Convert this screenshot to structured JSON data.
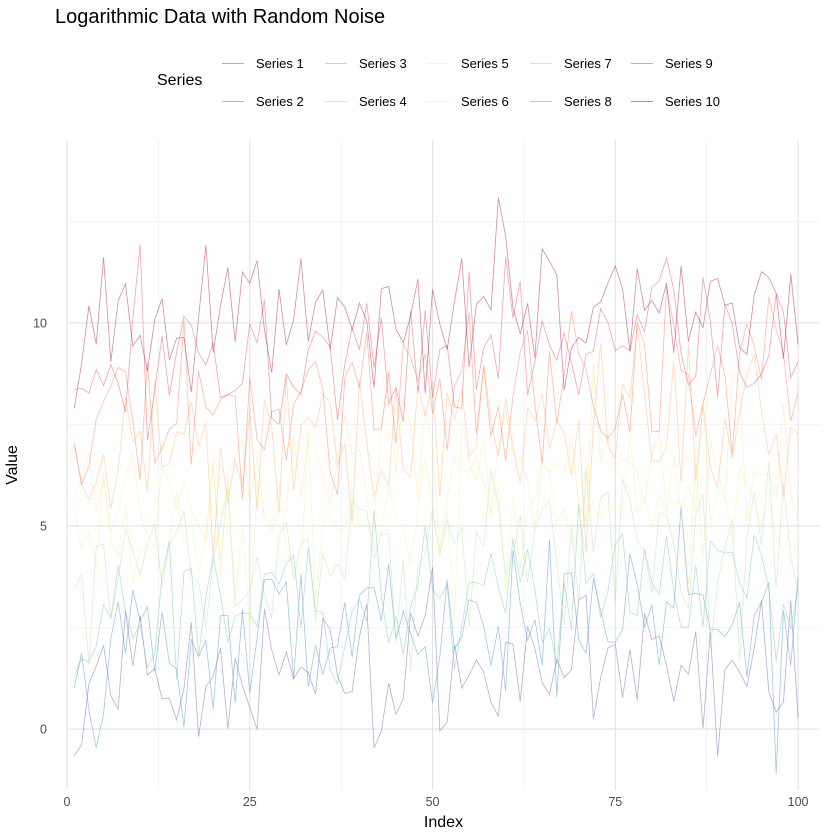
{
  "chart_data": {
    "type": "line",
    "title": "Logarithmic Data with Random Noise",
    "xlabel": "Index",
    "ylabel": "Value",
    "legend_title": "Series",
    "legend_position": "top",
    "grid": true,
    "xlim": [
      0,
      103
    ],
    "ylim": [
      -1.5,
      14.5
    ],
    "x_ticks": [
      0,
      25,
      50,
      75,
      100
    ],
    "y_ticks": [
      0,
      5,
      10
    ],
    "series": [
      {
        "name": "Series 1",
        "color": "#5E4FA2",
        "base": 0.0
      },
      {
        "name": "Series 2",
        "color": "#3288BD",
        "base": 1.0
      },
      {
        "name": "Series 3",
        "color": "#66C2A5",
        "base": 2.0
      },
      {
        "name": "Series 4",
        "color": "#ABDDA4",
        "base": 3.0
      },
      {
        "name": "Series 5",
        "color": "#E6F598",
        "base": 4.0
      },
      {
        "name": "Series 6",
        "color": "#FEE08B",
        "base": 5.0
      },
      {
        "name": "Series 7",
        "color": "#FDAE61",
        "base": 6.0
      },
      {
        "name": "Series 8",
        "color": "#F46D43",
        "base": 7.0
      },
      {
        "name": "Series 9",
        "color": "#D53E4F",
        "base": 8.0
      },
      {
        "name": "Series 10",
        "color": "#9E0142",
        "base": 9.0
      }
    ],
    "x_count": 100,
    "noise_amplitude": 1.0
  }
}
